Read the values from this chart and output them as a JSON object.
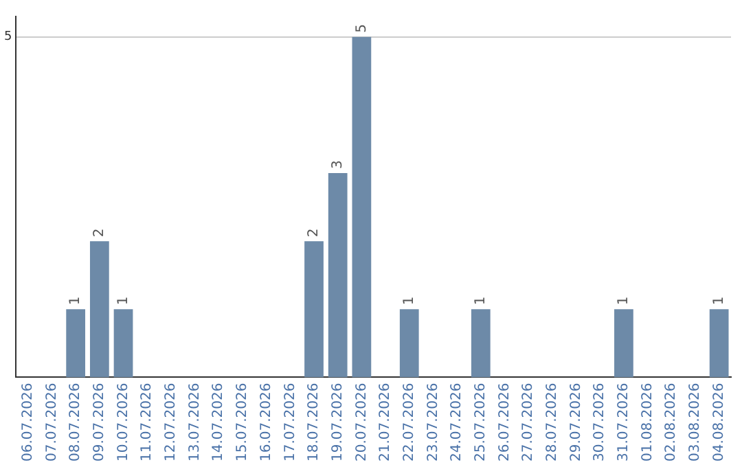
{
  "chart_data": {
    "type": "bar",
    "categories": [
      "06.07.2026",
      "07.07.2026",
      "08.07.2026",
      "09.07.2026",
      "10.07.2026",
      "11.07.2026",
      "12.07.2026",
      "13.07.2026",
      "14.07.2026",
      "15.07.2026",
      "16.07.2026",
      "17.07.2026",
      "18.07.2026",
      "19.07.2026",
      "20.07.2026",
      "21.07.2026",
      "22.07.2026",
      "23.07.2026",
      "24.07.2026",
      "25.07.2026",
      "26.07.2026",
      "27.07.2026",
      "28.07.2026",
      "29.07.2026",
      "30.07.2026",
      "31.07.2026",
      "01.08.2026",
      "02.08.2026",
      "03.08.2026",
      "04.08.2026"
    ],
    "values": [
      0,
      0,
      1,
      2,
      1,
      0,
      0,
      0,
      0,
      0,
      0,
      0,
      2,
      3,
      5,
      0,
      1,
      0,
      0,
      1,
      0,
      0,
      0,
      0,
      0,
      1,
      0,
      0,
      0,
      1
    ],
    "value_labels": [
      null,
      null,
      "1",
      "2",
      "1",
      null,
      null,
      null,
      null,
      null,
      null,
      null,
      "2",
      "3",
      "5",
      null,
      "1",
      null,
      null,
      "1",
      null,
      null,
      null,
      null,
      null,
      "1",
      null,
      null,
      null,
      "1"
    ],
    "color": "#6d8aa8",
    "ylim": [
      0,
      5.3
    ],
    "yticks": [
      5
    ],
    "grid": "y",
    "legend": false
  }
}
